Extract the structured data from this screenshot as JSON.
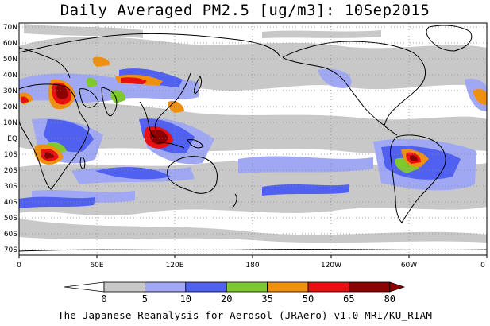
{
  "title": "Daily Averaged PM2.5 [ug/m3]: 10Sep2015",
  "lat_labels": [
    "70N",
    "60N",
    "50N",
    "40N",
    "30N",
    "20N",
    "10N",
    "EQ",
    "10S",
    "20S",
    "30S",
    "40S",
    "50S",
    "60S",
    "70S"
  ],
  "lon_labels": [
    "0",
    "60E",
    "120E",
    "180",
    "120W",
    "60W",
    "0"
  ],
  "colorbar": {
    "labels": [
      "0",
      "5",
      "10",
      "20",
      "35",
      "50",
      "65",
      "80"
    ],
    "colors": [
      "#ffffff",
      "#c8c8c8",
      "#a0a8f4",
      "#5060f0",
      "#80c830",
      "#f09010",
      "#e81010",
      "#8c0000"
    ]
  },
  "footer": "The Japanese Reanalysis for Aerosol (JRAero) v1.0 MRI/KU_RIAM"
}
